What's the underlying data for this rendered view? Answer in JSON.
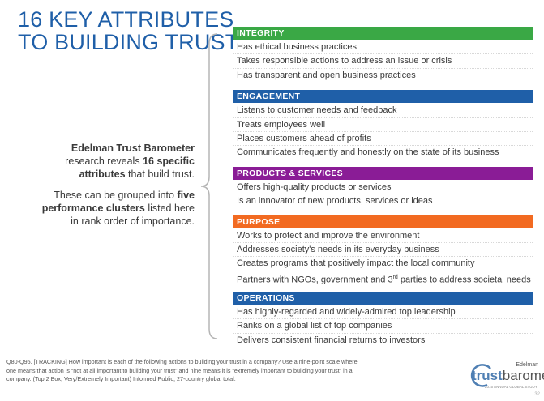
{
  "title": "16 KEY ATTRIBUTES TO BUILDING TRUST",
  "intro": {
    "part1_bold": "Edelman Trust Barometer",
    "part1_a": "research reveals",
    "part1_bold2": "16 specific",
    "part1_b": "attributes",
    "part1_c": "that build trust.",
    "part2_a": "These can be grouped into",
    "part2_bold": "five performance clusters",
    "part2_b": "listed here in rank order of importance."
  },
  "clusters": [
    {
      "name": "INTEGRITY",
      "color": "#3aa845",
      "items": [
        "Has ethical business practices",
        "Takes responsible actions to address an issue or crisis",
        "Has transparent and open business practices"
      ]
    },
    {
      "name": "ENGAGEMENT",
      "color": "#1f5fa8",
      "items": [
        "Listens to customer needs and feedback",
        "Treats employees well",
        "Places customers ahead of profits",
        "Communicates frequently and honestly on the state of its business"
      ]
    },
    {
      "name": "PRODUCTS & SERVICES",
      "color": "#8a1c96",
      "items": [
        "Offers high-quality products or services",
        "Is an innovator of new products, services or ideas"
      ]
    },
    {
      "name": "PURPOSE",
      "color": "#f26a21",
      "items": [
        "Works to protect and improve the environment",
        "Addresses society's needs in its everyday business",
        "Creates programs that positively impact the local community",
        "Partners with NGOs, government and 3rd parties to address societal needs"
      ]
    },
    {
      "name": "OPERATIONS",
      "color": "#1f5fa8",
      "items": [
        "Has highly-regarded and widely-admired top leadership",
        "Ranks on a global list of top companies",
        "Delivers consistent financial returns to investors"
      ]
    }
  ],
  "footnote": "Q80-Q95. [TRACKING] How important is each of the following actions to building your trust in a company? Use a nine-point scale where one means that action is “not at all important to building your trust” and nine means it is “extremely important to building your trust” in a company. (Top 2 Box, Very/Extremely Important) Informed Public, 27-country global total.",
  "logo": {
    "edelman": "Edelman",
    "trust": "trust",
    "barometer": "barometer",
    "sub": "2015 ANNUAL GLOBAL STUDY"
  },
  "page_number": "32"
}
